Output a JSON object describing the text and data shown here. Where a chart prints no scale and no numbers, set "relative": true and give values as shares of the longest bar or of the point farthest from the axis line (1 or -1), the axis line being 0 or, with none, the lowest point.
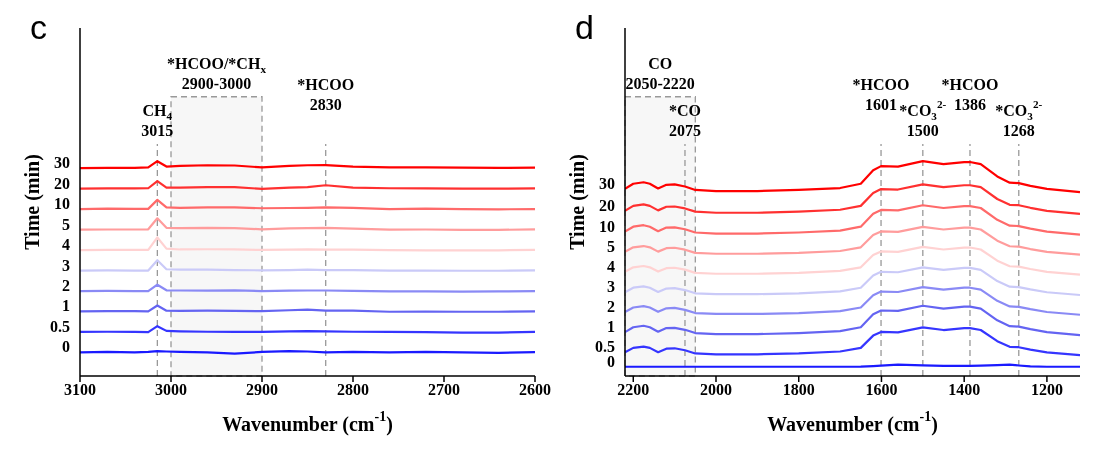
{
  "chart_data": [
    {
      "type": "line",
      "title": "c",
      "xlabel": "Wavenumber (cm$^{-1}$)",
      "ylabel": "Time (min)",
      "relative": true,
      "x": [
        3100,
        3070,
        3040,
        3025,
        3015,
        3005,
        2990,
        2960,
        2930,
        2900,
        2870,
        2850,
        2830,
        2800,
        2760,
        2720,
        2680,
        2640,
        2600
      ],
      "xlim": [
        3100,
        2600
      ],
      "xticks": [
        3100,
        3000,
        2900,
        2800,
        2700,
        2600
      ],
      "series": [
        {
          "name": "0",
          "color": "#1a1aff",
          "values": [
            0.11,
            0.112,
            0.11,
            0.112,
            0.116,
            0.114,
            0.112,
            0.11,
            0.104,
            0.112,
            0.116,
            0.114,
            0.11,
            0.112,
            0.11,
            0.112,
            0.11,
            0.108,
            0.111
          ]
        },
        {
          "name": "0.5",
          "color": "#3535ff",
          "values": [
            0.205,
            0.206,
            0.205,
            0.204,
            0.232,
            0.21,
            0.208,
            0.206,
            0.205,
            0.205,
            0.208,
            0.209,
            0.208,
            0.206,
            0.205,
            0.204,
            0.202,
            0.202,
            0.205
          ]
        },
        {
          "name": "1",
          "color": "#6464f2",
          "values": [
            0.301,
            0.302,
            0.302,
            0.301,
            0.328,
            0.304,
            0.303,
            0.304,
            0.303,
            0.302,
            0.306,
            0.309,
            0.304,
            0.304,
            0.299,
            0.3,
            0.299,
            0.299,
            0.301
          ]
        },
        {
          "name": "2",
          "color": "#8a8af5",
          "values": [
            0.395,
            0.396,
            0.395,
            0.395,
            0.425,
            0.399,
            0.398,
            0.397,
            0.399,
            0.395,
            0.397,
            0.398,
            0.398,
            0.396,
            0.394,
            0.394,
            0.393,
            0.394,
            0.395
          ]
        },
        {
          "name": "3",
          "color": "#cacaf8",
          "values": [
            0.491,
            0.492,
            0.491,
            0.491,
            0.539,
            0.497,
            0.495,
            0.495,
            0.493,
            0.492,
            0.493,
            0.495,
            0.493,
            0.493,
            0.491,
            0.491,
            0.49,
            0.49,
            0.492
          ]
        },
        {
          "name": "4",
          "color": "#ffd2d2",
          "values": [
            0.586,
            0.587,
            0.587,
            0.587,
            0.645,
            0.593,
            0.589,
            0.59,
            0.589,
            0.587,
            0.588,
            0.589,
            0.588,
            0.588,
            0.586,
            0.585,
            0.585,
            0.585,
            0.587
          ]
        },
        {
          "name": "5",
          "color": "#ff9c9c",
          "values": [
            0.681,
            0.682,
            0.682,
            0.683,
            0.734,
            0.69,
            0.688,
            0.69,
            0.688,
            0.683,
            0.687,
            0.688,
            0.69,
            0.686,
            0.681,
            0.682,
            0.68,
            0.68,
            0.683
          ]
        },
        {
          "name": "10",
          "color": "#ff6a6a",
          "values": [
            0.777,
            0.779,
            0.778,
            0.778,
            0.82,
            0.785,
            0.783,
            0.785,
            0.785,
            0.781,
            0.782,
            0.783,
            0.785,
            0.783,
            0.777,
            0.779,
            0.777,
            0.776,
            0.777
          ]
        },
        {
          "name": "20",
          "color": "#ff3030",
          "values": [
            0.872,
            0.873,
            0.873,
            0.874,
            0.907,
            0.877,
            0.877,
            0.879,
            0.879,
            0.871,
            0.877,
            0.879,
            0.888,
            0.877,
            0.874,
            0.873,
            0.872,
            0.872,
            0.873
          ]
        },
        {
          "name": "30",
          "color": "#ff0000",
          "values": [
            0.968,
            0.969,
            0.969,
            0.971,
            1.0,
            0.975,
            0.978,
            0.981,
            0.98,
            0.971,
            0.978,
            0.981,
            0.982,
            0.975,
            0.971,
            0.971,
            0.97,
            0.969,
            0.97
          ]
        }
      ],
      "ref_lines": [
        {
          "axis": "x",
          "value": 3015,
          "label": "CH$_{4}$\n3015",
          "color": "#999999",
          "line_style": "dashed"
        },
        {
          "axis": "x",
          "value": 2830,
          "label": "*HCOO\n2830",
          "color": "#999999",
          "line_style": "dashed"
        }
      ],
      "bands": [
        {
          "axis": "x",
          "from": 3000,
          "to": 2900,
          "label": "*HCOO/*CH$_{x}$\n2900-3000",
          "color": "#999999"
        }
      ]
    },
    {
      "type": "line",
      "title": "d",
      "xlabel": "Wavenumber (cm$^{-1}$)",
      "ylabel": "Time (min)",
      "relative": true,
      "x": [
        2220,
        2200,
        2175,
        2160,
        2140,
        2120,
        2100,
        2075,
        2050,
        2000,
        1900,
        1800,
        1700,
        1650,
        1620,
        1601,
        1560,
        1500,
        1450,
        1400,
        1386,
        1360,
        1320,
        1290,
        1268,
        1240,
        1200,
        1120
      ],
      "xlim": [
        2220,
        1120
      ],
      "xticks": [
        2200,
        2000,
        1800,
        1600,
        1400,
        1200
      ],
      "series": [
        {
          "name": "0",
          "color": "#1a1aff",
          "values": [
            0.043,
            0.043,
            0.043,
            0.043,
            0.043,
            0.043,
            0.043,
            0.043,
            0.043,
            0.043,
            0.043,
            0.043,
            0.043,
            0.044,
            0.046,
            0.048,
            0.053,
            0.049,
            0.047,
            0.047,
            0.047,
            0.048,
            0.051,
            0.053,
            0.049,
            0.045,
            0.043,
            0.043
          ]
        },
        {
          "name": "0.5",
          "color": "#3535ff",
          "values": [
            0.11,
            0.131,
            0.137,
            0.131,
            0.111,
            0.127,
            0.129,
            0.12,
            0.105,
            0.101,
            0.101,
            0.105,
            0.114,
            0.131,
            0.188,
            0.205,
            0.203,
            0.226,
            0.214,
            0.223,
            0.223,
            0.214,
            0.162,
            0.136,
            0.134,
            0.123,
            0.11,
            0.097
          ]
        },
        {
          "name": "1",
          "color": "#6464f2",
          "values": [
            0.204,
            0.227,
            0.234,
            0.227,
            0.206,
            0.223,
            0.224,
            0.215,
            0.2,
            0.195,
            0.195,
            0.2,
            0.209,
            0.227,
            0.287,
            0.305,
            0.303,
            0.327,
            0.314,
            0.323,
            0.323,
            0.314,
            0.259,
            0.232,
            0.23,
            0.218,
            0.204,
            0.19
          ]
        },
        {
          "name": "2",
          "color": "#8a8af5",
          "values": [
            0.298,
            0.319,
            0.325,
            0.319,
            0.299,
            0.315,
            0.317,
            0.308,
            0.293,
            0.289,
            0.289,
            0.293,
            0.302,
            0.319,
            0.376,
            0.393,
            0.391,
            0.414,
            0.402,
            0.411,
            0.411,
            0.402,
            0.35,
            0.324,
            0.322,
            0.311,
            0.298,
            0.285
          ]
        },
        {
          "name": "3",
          "color": "#cacaf8",
          "values": [
            0.39,
            0.411,
            0.417,
            0.411,
            0.391,
            0.407,
            0.409,
            0.4,
            0.385,
            0.381,
            0.381,
            0.385,
            0.394,
            0.411,
            0.468,
            0.485,
            0.483,
            0.506,
            0.494,
            0.503,
            0.503,
            0.494,
            0.442,
            0.416,
            0.414,
            0.403,
            0.39,
            0.377
          ]
        },
        {
          "name": "4",
          "color": "#ffd2d2",
          "values": [
            0.485,
            0.506,
            0.512,
            0.506,
            0.486,
            0.502,
            0.504,
            0.495,
            0.48,
            0.476,
            0.476,
            0.48,
            0.489,
            0.506,
            0.563,
            0.58,
            0.578,
            0.601,
            0.589,
            0.598,
            0.598,
            0.589,
            0.537,
            0.511,
            0.509,
            0.498,
            0.485,
            0.472
          ]
        },
        {
          "name": "5",
          "color": "#ff9c9c",
          "values": [
            0.578,
            0.599,
            0.605,
            0.599,
            0.579,
            0.595,
            0.597,
            0.588,
            0.573,
            0.569,
            0.569,
            0.573,
            0.582,
            0.599,
            0.656,
            0.673,
            0.671,
            0.694,
            0.682,
            0.691,
            0.691,
            0.682,
            0.63,
            0.604,
            0.602,
            0.591,
            0.578,
            0.565
          ]
        },
        {
          "name": "10",
          "color": "#ff6a6a",
          "values": [
            0.672,
            0.695,
            0.702,
            0.695,
            0.674,
            0.691,
            0.692,
            0.683,
            0.668,
            0.663,
            0.663,
            0.668,
            0.677,
            0.695,
            0.755,
            0.773,
            0.771,
            0.795,
            0.782,
            0.791,
            0.791,
            0.782,
            0.727,
            0.7,
            0.698,
            0.686,
            0.672,
            0.658
          ]
        },
        {
          "name": "20",
          "color": "#ff3030",
          "values": [
            0.769,
            0.792,
            0.799,
            0.792,
            0.771,
            0.788,
            0.789,
            0.78,
            0.765,
            0.76,
            0.76,
            0.765,
            0.774,
            0.792,
            0.852,
            0.87,
            0.868,
            0.892,
            0.879,
            0.888,
            0.888,
            0.879,
            0.824,
            0.797,
            0.795,
            0.783,
            0.769,
            0.755
          ]
        },
        {
          "name": "30",
          "color": "#ff0000",
          "values": [
            0.871,
            0.895,
            0.902,
            0.895,
            0.873,
            0.89,
            0.892,
            0.882,
            0.866,
            0.861,
            0.861,
            0.866,
            0.875,
            0.895,
            0.958,
            0.977,
            0.975,
            1.0,
            0.986,
            0.996,
            0.996,
            0.986,
            0.929,
            0.9,
            0.898,
            0.885,
            0.871,
            0.856
          ]
        }
      ],
      "ref_lines": [
        {
          "axis": "x",
          "value": 2075,
          "label": "*CO\n2075",
          "color": "#999999",
          "line_style": "dashed"
        },
        {
          "axis": "x",
          "value": 1601,
          "label": "*HCOO\n1601",
          "color": "#999999",
          "line_style": "dashed"
        },
        {
          "axis": "x",
          "value": 1500,
          "label": "*CO$_{3}$$^{2-}$\n1500",
          "color": "#999999",
          "line_style": "dashed"
        },
        {
          "axis": "x",
          "value": 1386,
          "label": "*HCOO\n1386",
          "color": "#999999",
          "line_style": "dashed"
        },
        {
          "axis": "x",
          "value": 1268,
          "label": "*CO$_{3}$$^{2-}$\n1268",
          "color": "#999999",
          "line_style": "dashed"
        }
      ],
      "bands": [
        {
          "axis": "x",
          "from": 2220,
          "to": 2050,
          "label": "CO\n2050-2220",
          "color": "#999999"
        }
      ]
    }
  ]
}
